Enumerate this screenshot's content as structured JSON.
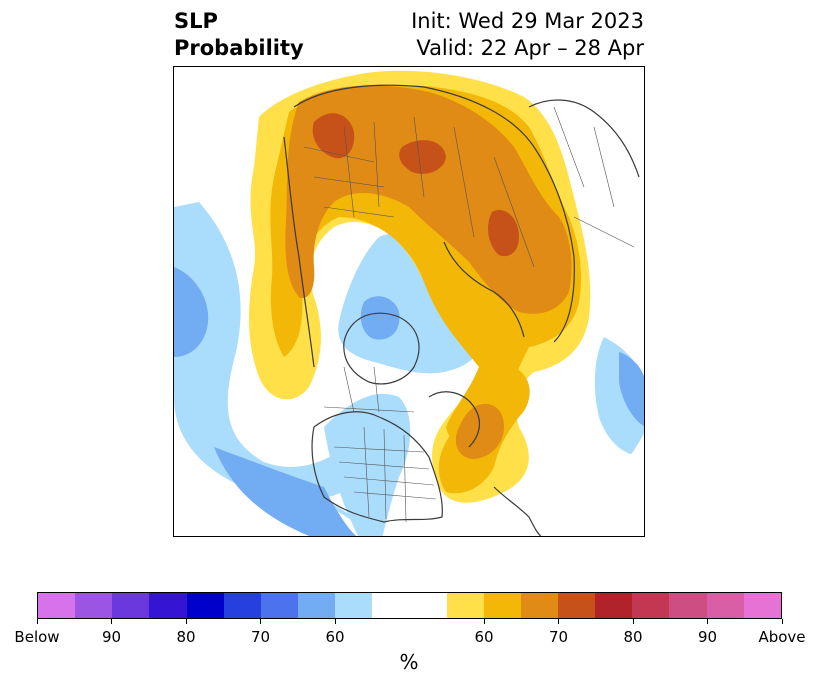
{
  "title": {
    "left_line1": "SLP",
    "left_line2": "Probability",
    "right_line1": "Init: Wed 29 Mar 2023",
    "right_line2": "Valid: 22 Apr – 28 Apr"
  },
  "map": {
    "projection": "north-polar-stereographic",
    "region": "Northern Hemisphere",
    "features": [
      "coastlines",
      "country-borders",
      "us-state-borders",
      "canadian-provinces"
    ],
    "anomaly_regions": [
      {
        "area": "Europe / western Russia",
        "category": "above",
        "max_level": "70-75"
      },
      {
        "area": "Siberia / Central Asia",
        "category": "above",
        "max_level": "70-75"
      },
      {
        "area": "North Atlantic / Greenland-Iceland",
        "category": "above",
        "max_level": "65-70"
      },
      {
        "area": "Eastern North America / western Atlantic",
        "category": "above",
        "max_level": "65-70"
      },
      {
        "area": "Arctic / Canadian Archipelago",
        "category": "below",
        "max_level": "60-65"
      },
      {
        "area": "North Pacific / Alaska",
        "category": "below",
        "max_level": "60-65"
      },
      {
        "area": "Western / Central US",
        "category": "below",
        "max_level": "60-65"
      }
    ]
  },
  "colorbar": {
    "colors": [
      "#d672ea",
      "#9c54e2",
      "#6a38dc",
      "#3515d3",
      "#0000cc",
      "#2540df",
      "#4d73ec",
      "#72acf3",
      "#aadcfc",
      "#ffffff",
      "#ffe048",
      "#f2b707",
      "#df8b15",
      "#c75219",
      "#b0232b",
      "#c23852",
      "#cc4e83",
      "#d85ea6",
      "#e672d6"
    ],
    "tick_labels": [
      "Below",
      "90",
      "80",
      "70",
      "60",
      "60",
      "70",
      "80",
      "90",
      "Above"
    ],
    "units": "%"
  }
}
